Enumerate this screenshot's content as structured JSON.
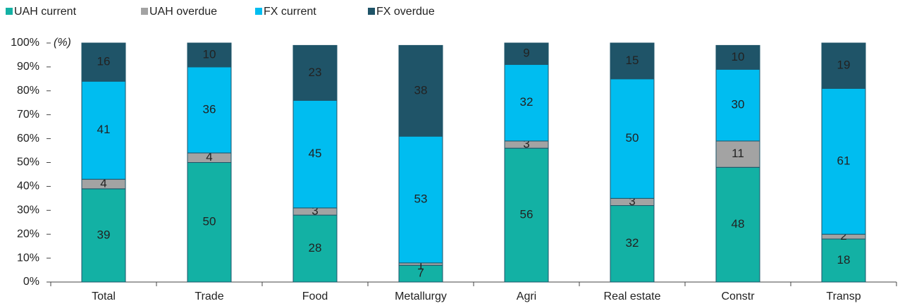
{
  "chart_data": {
    "type": "stacked_bar",
    "annotation": "(%)",
    "categories": [
      "Total",
      "Trade",
      "Food",
      "Metallurgy",
      "Agri",
      "Real estate",
      "Constr",
      "Transp"
    ],
    "series": [
      {
        "name": "UAH current",
        "color": "#13b1a4",
        "values": [
          39,
          50,
          28,
          7,
          56,
          32,
          48,
          18
        ]
      },
      {
        "name": "UAH overdue",
        "color": "#a3a3a3",
        "values": [
          4,
          4,
          3,
          1,
          3,
          3,
          11,
          2
        ]
      },
      {
        "name": "FX current",
        "color": "#00bdf0",
        "values": [
          41,
          36,
          45,
          53,
          32,
          50,
          30,
          61
        ]
      },
      {
        "name": "FX overdue",
        "color": "#1f5468",
        "values": [
          16,
          10,
          23,
          38,
          9,
          15,
          10,
          19
        ]
      }
    ],
    "ylim": [
      0,
      100
    ],
    "yticks": [
      {
        "value": 0,
        "label": "0%"
      },
      {
        "value": 10,
        "label": "10%"
      },
      {
        "value": 20,
        "label": "20%"
      },
      {
        "value": 30,
        "label": "30%"
      },
      {
        "value": 40,
        "label": "40%"
      },
      {
        "value": 50,
        "label": "50%"
      },
      {
        "value": 60,
        "label": "60%"
      },
      {
        "value": 70,
        "label": "70%"
      },
      {
        "value": 80,
        "label": "80%"
      },
      {
        "value": 90,
        "label": "90%"
      },
      {
        "value": 100,
        "label": "100%"
      }
    ],
    "legend": "top-left"
  }
}
